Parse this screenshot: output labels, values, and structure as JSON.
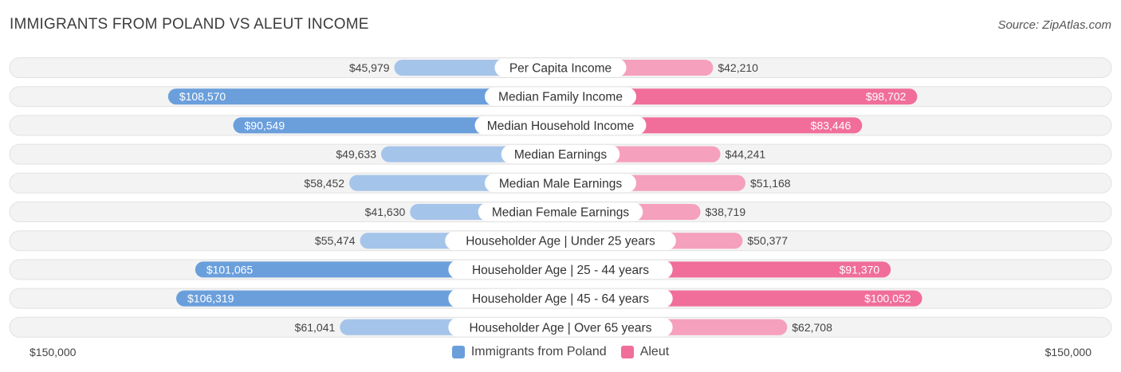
{
  "header": {
    "title": "IMMIGRANTS FROM POLAND VS ALEUT INCOME",
    "source": "Source: ZipAtlas.com"
  },
  "colors": {
    "left_strong": "#6a9fdc",
    "left_light": "#a5c4ea",
    "right_strong": "#f06e99",
    "right_light": "#f5a0bd",
    "track": "#eeeeee"
  },
  "chart_data": {
    "type": "bar",
    "orientation": "horizontal-diverging",
    "title": "IMMIGRANTS FROM POLAND VS ALEUT INCOME",
    "axis_max": 150000,
    "axis_left_label": "$150,000",
    "axis_right_label": "$150,000",
    "legend": [
      "Immigrants from Poland",
      "Aleut"
    ],
    "categories": [
      "Per Capita Income",
      "Median Family Income",
      "Median Household Income",
      "Median Earnings",
      "Median Male Earnings",
      "Median Female Earnings",
      "Householder Age | Under 25 years",
      "Householder Age | 25 - 44 years",
      "Householder Age | 45 - 64 years",
      "Householder Age | Over 65 years"
    ],
    "series": [
      {
        "name": "Immigrants from Poland",
        "values": [
          45979,
          108570,
          90549,
          49633,
          58452,
          41630,
          55474,
          101065,
          106319,
          61041
        ],
        "labels": [
          "$45,979",
          "$108,570",
          "$90,549",
          "$49,633",
          "$58,452",
          "$41,630",
          "$55,474",
          "$101,065",
          "$106,319",
          "$61,041"
        ]
      },
      {
        "name": "Aleut",
        "values": [
          42210,
          98702,
          83446,
          44241,
          51168,
          38719,
          50377,
          91370,
          100052,
          62708
        ],
        "labels": [
          "$42,210",
          "$98,702",
          "$83,446",
          "$44,241",
          "$51,168",
          "$38,719",
          "$50,377",
          "$91,370",
          "$100,052",
          "$62,708"
        ]
      }
    ]
  }
}
